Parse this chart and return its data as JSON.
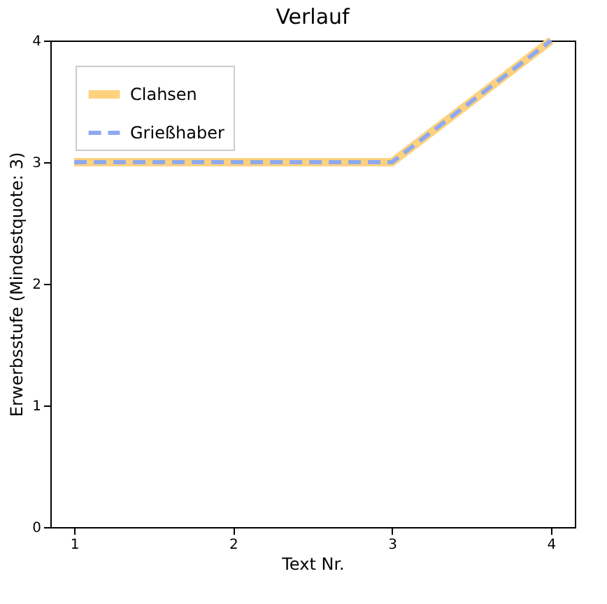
{
  "chart_data": {
    "type": "line",
    "title": "Verlauf",
    "xlabel": "Text Nr.",
    "ylabel": "Erwerbsstufe (Mindestquote: 3)",
    "x": [
      1,
      2,
      3,
      4
    ],
    "series": [
      {
        "name": "Clahsen",
        "color": "#fdd27e",
        "values": [
          3,
          3,
          3,
          4
        ],
        "line_style": "solid"
      },
      {
        "name": "Grießhaber",
        "color": "#8fa9ee",
        "values": [
          3,
          3,
          3,
          4
        ],
        "line_style": "dashed"
      }
    ],
    "xlim": [
      0.85,
      4.15
    ],
    "ylim": [
      0,
      4
    ],
    "xticks": [
      1,
      2,
      3,
      4
    ],
    "yticks": [
      0,
      1,
      2,
      3,
      4
    ],
    "grid": false,
    "legend": "top left"
  }
}
